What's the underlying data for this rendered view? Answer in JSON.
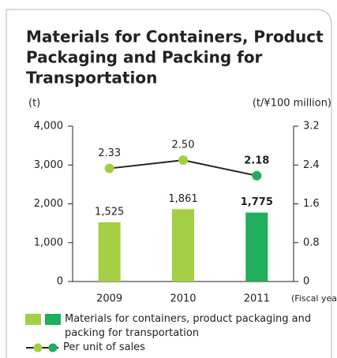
{
  "chart_data": {
    "type": "bar",
    "title_lines": [
      "Materials for Containers, Product",
      "Packaging and Packing for",
      "Transportation"
    ],
    "ylabel": "(t)",
    "y2label": "(t/¥100 million)",
    "xlabel": "(Fiscal year)",
    "categories": [
      "2009",
      "2010",
      "2011"
    ],
    "series": [
      {
        "name": "Materials for containers, product packaging and packing for transportation",
        "type": "bar",
        "colors": [
          "#a3cf45",
          "#a3cf45",
          "#1fae5c"
        ],
        "values": [
          1525,
          1861,
          1775
        ],
        "value_labels": [
          "1,525",
          "1,861",
          "1,775"
        ]
      },
      {
        "name": "Per unit of sales",
        "type": "line",
        "axis": "y2",
        "color": "#222222",
        "marker_colors": [
          "#a3cf45",
          "#a3cf45",
          "#1fae5c"
        ],
        "values": [
          2.33,
          2.5,
          2.18
        ],
        "value_labels": [
          "2.33",
          "2.50",
          "2.18"
        ]
      }
    ],
    "ylim": [
      0,
      4000
    ],
    "yticks": [
      0,
      {
        "value": 1000,
        "label": "1,000"
      },
      {
        "value": 2000,
        "label": "2,000"
      },
      {
        "value": 3000,
        "label": "3,000"
      },
      {
        "value": 4000,
        "label": "4,000"
      }
    ],
    "y2lim": [
      0,
      3.2
    ],
    "y2ticks": [
      0,
      0.8,
      1.6,
      2.4,
      3.2
    ]
  }
}
